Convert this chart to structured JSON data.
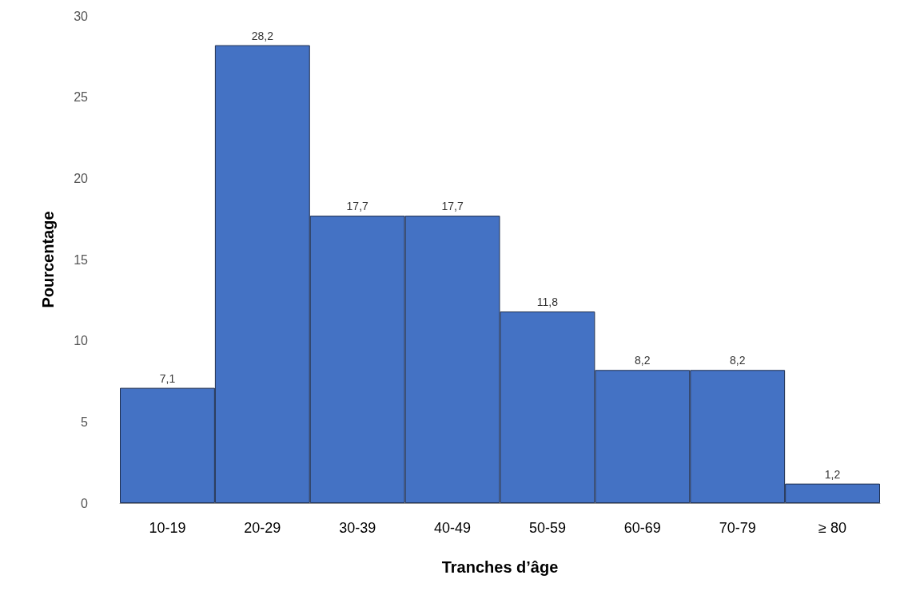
{
  "chart_data": {
    "type": "bar",
    "xlabel": "Tranches d’âge",
    "ylabel": "Pourcentage",
    "categories": [
      "10-19",
      "20-29",
      "30-39",
      "40-49",
      "50-59",
      "60-69",
      "70-79",
      "≥ 80"
    ],
    "values": [
      7.1,
      28.2,
      17.7,
      17.7,
      11.8,
      8.2,
      8.2,
      1.2
    ],
    "value_labels": [
      "7,1",
      "28,2",
      "17,7",
      "17,7",
      "11,8",
      "8,2",
      "8,2",
      "1,2"
    ],
    "color": "#4472c4",
    "ylim": [
      0,
      30
    ],
    "yticks": [
      0,
      5,
      10,
      15,
      20,
      25,
      30
    ],
    "grid": false
  }
}
